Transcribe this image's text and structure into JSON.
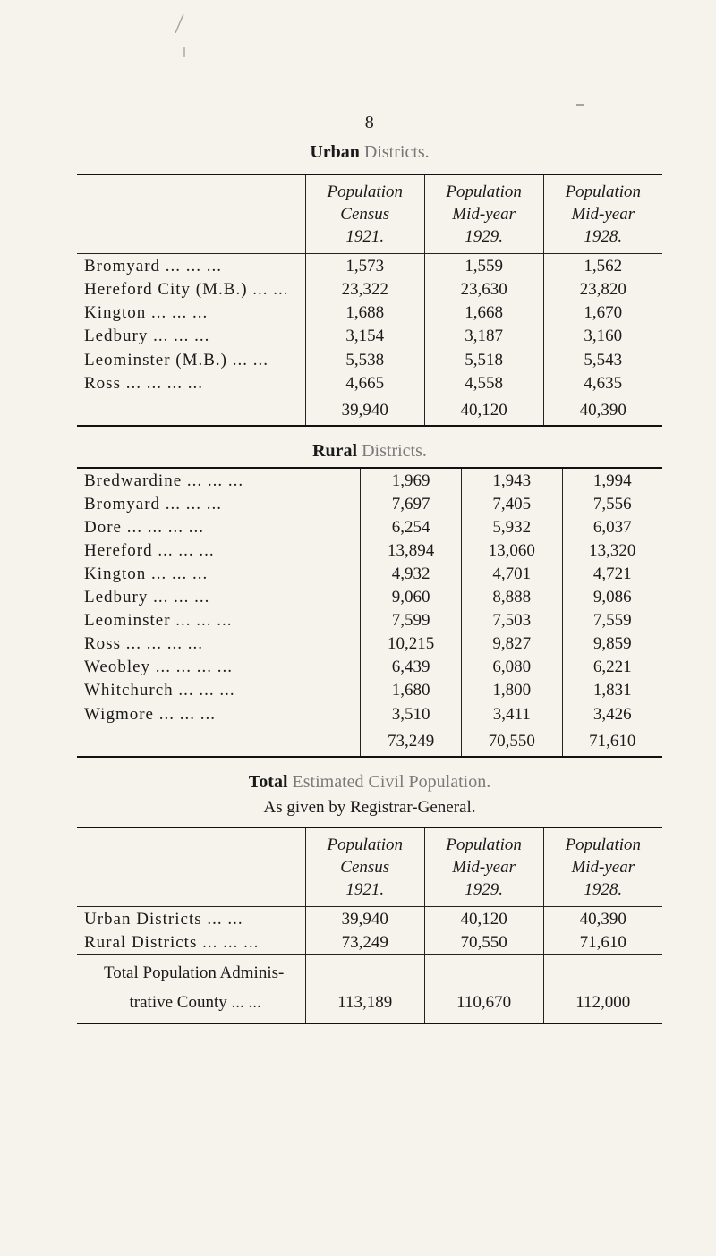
{
  "page_number": "8",
  "titles": {
    "urban_lead": "Urban",
    "urban_tail": " Districts.",
    "rural_lead": "Rural",
    "rural_tail": " Districts.",
    "total_lead": "Total",
    "total_tail": " Estimated Civil Population.",
    "as_given": "As given by Registrar-General."
  },
  "headers": {
    "blank": "",
    "pop_census_line1": "Population",
    "pop_census_line2": "Census",
    "pop_census_line3": "1921.",
    "pop_my29_line1": "Population",
    "pop_my29_line2": "Mid-year",
    "pop_my29_line3": "1929.",
    "pop_my28_line1": "Population",
    "pop_my28_line2": "Mid-year",
    "pop_my28_line3": "1928."
  },
  "urban_rows": [
    {
      "label": "Bromyard   ...   ...   ...",
      "c": "1,573",
      "m29": "1,559",
      "m28": "1,562"
    },
    {
      "label": "Hereford City (M.B.)   ...   ...",
      "c": "23,322",
      "m29": "23,630",
      "m28": "23,820"
    },
    {
      "label": "Kington   ...   ...   ...",
      "c": "1,688",
      "m29": "1,668",
      "m28": "1,670"
    },
    {
      "label": "Ledbury   ...   ...   ...",
      "c": "3,154",
      "m29": "3,187",
      "m28": "3,160"
    },
    {
      "label": "Leominster (M.B.)   ...   ...",
      "c": "5,538",
      "m29": "5,518",
      "m28": "5,543"
    },
    {
      "label": "Ross   ...   ...   ...   ...",
      "c": "4,665",
      "m29": "4,558",
      "m28": "4,635"
    }
  ],
  "urban_total": {
    "c": "39,940",
    "m29": "40,120",
    "m28": "40,390"
  },
  "rural_rows": [
    {
      "label": "Bredwardine   ...   ...   ...",
      "c": "1,969",
      "m29": "1,943",
      "m28": "1,994"
    },
    {
      "label": "Bromyard   ...   ...   ...",
      "c": "7,697",
      "m29": "7,405",
      "m28": "7,556"
    },
    {
      "label": "Dore   ...   ...   ...   ...",
      "c": "6,254",
      "m29": "5,932",
      "m28": "6,037"
    },
    {
      "label": "Hereford   ...   ...   ...",
      "c": "13,894",
      "m29": "13,060",
      "m28": "13,320"
    },
    {
      "label": "Kington   ...   ...   ...",
      "c": "4,932",
      "m29": "4,701",
      "m28": "4,721"
    },
    {
      "label": "Ledbury   ...   ...   ...",
      "c": "9,060",
      "m29": "8,888",
      "m28": "9,086"
    },
    {
      "label": "Leominster   ...   ...   ...",
      "c": "7,599",
      "m29": "7,503",
      "m28": "7,559"
    },
    {
      "label": "Ross   ...   ...   ...   ...",
      "c": "10,215",
      "m29": "9,827",
      "m28": "9,859"
    },
    {
      "label": "Weobley ...   ...   ...   ...",
      "c": "6,439",
      "m29": "6,080",
      "m28": "6,221"
    },
    {
      "label": "Whitchurch   ...   ...   ...",
      "c": "1,680",
      "m29": "1,800",
      "m28": "1,831"
    },
    {
      "label": "Wigmore   ...   ...   ...",
      "c": "3,510",
      "m29": "3,411",
      "m28": "3,426"
    }
  ],
  "rural_total": {
    "c": "73,249",
    "m29": "70,550",
    "m28": "71,610"
  },
  "summary_rows": [
    {
      "label": "Urban Districts   ...   ...",
      "c": "39,940",
      "m29": "40,120",
      "m28": "40,390"
    },
    {
      "label": "Rural Districts ...   ...   ...",
      "c": "73,249",
      "m29": "70,550",
      "m28": "71,610"
    }
  ],
  "summary_total_label1": "Total Population Adminis-",
  "summary_total_label2": "      trative County ...   ...",
  "summary_total": {
    "c": "113,189",
    "m29": "110,670",
    "m28": "112,000"
  }
}
